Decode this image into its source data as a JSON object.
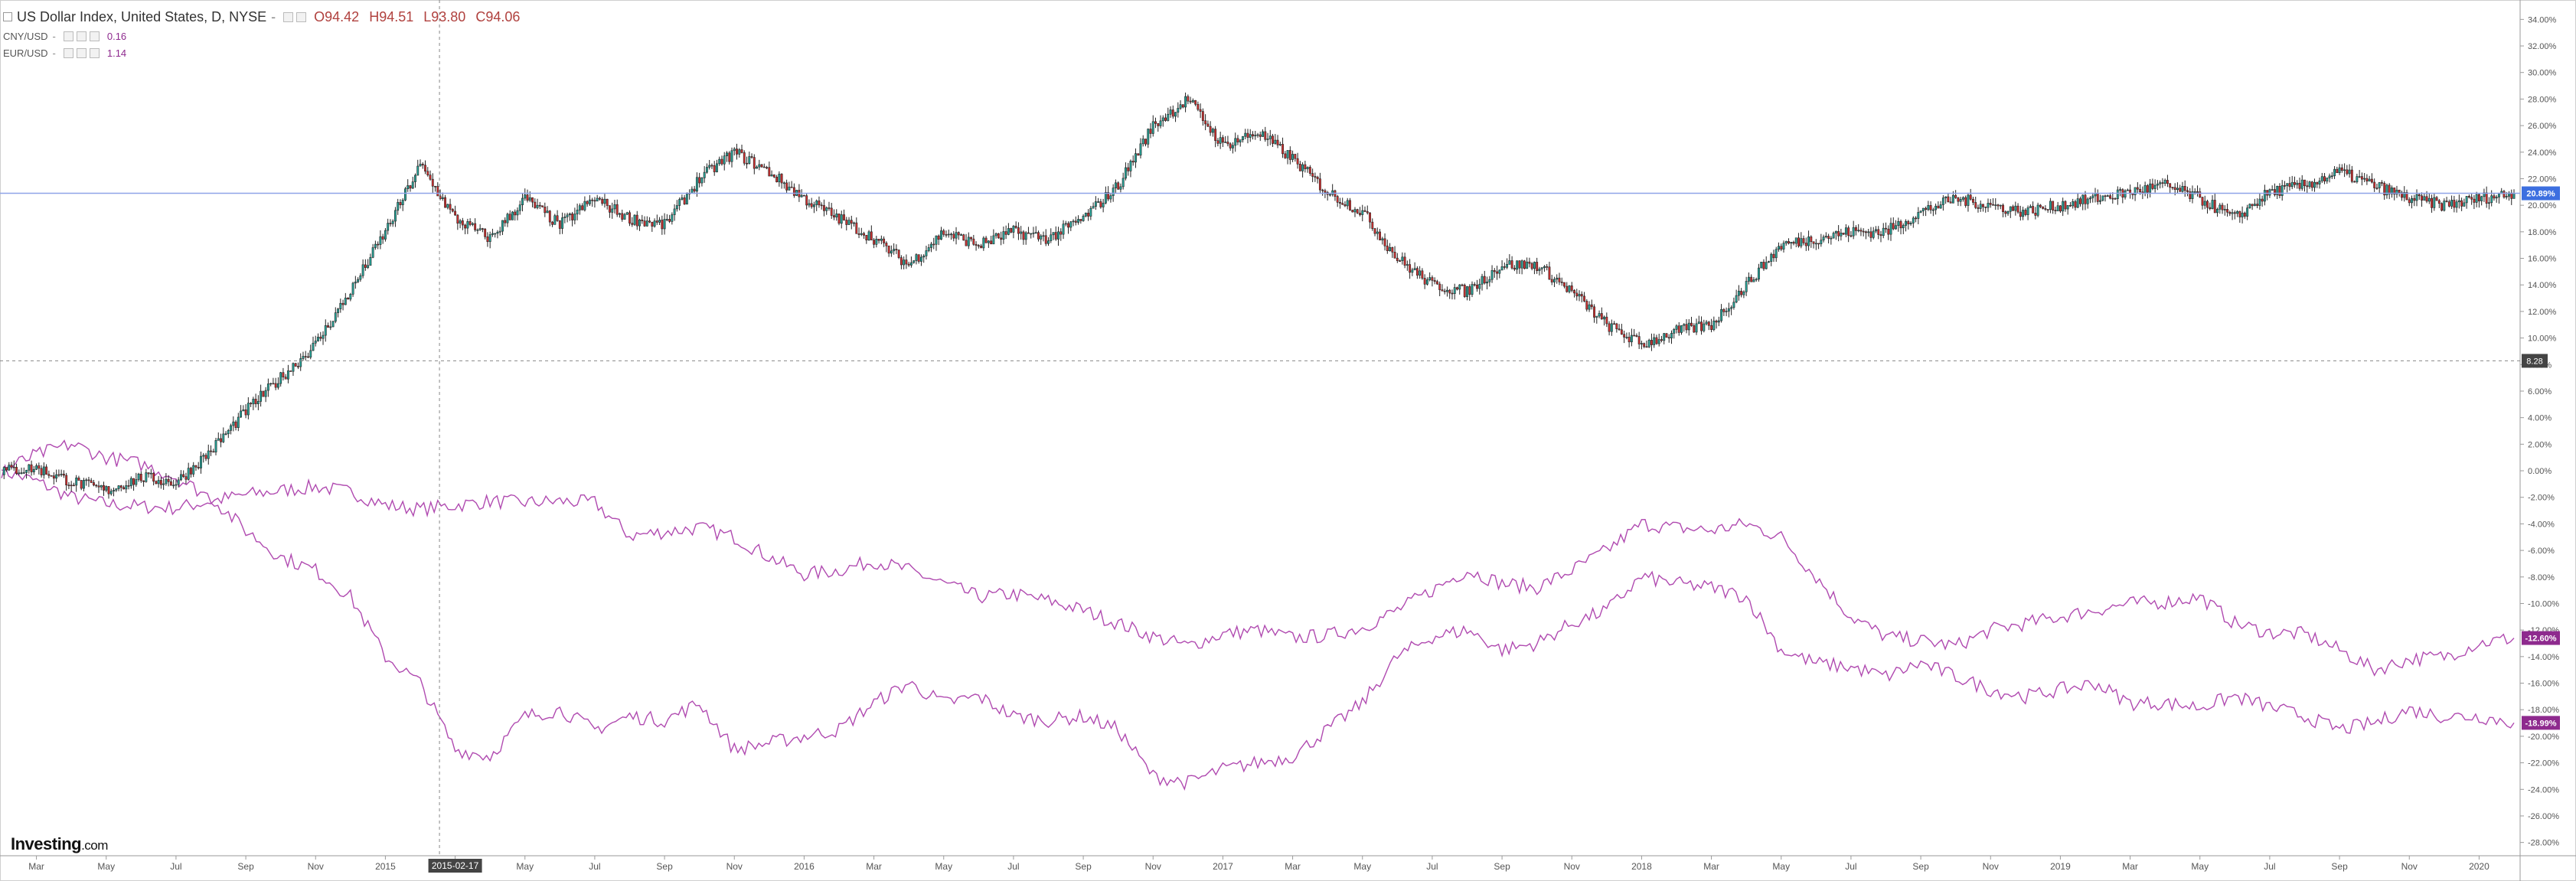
{
  "legend": {
    "main_title": "US Dollar Index, United States, D, NYSE",
    "main_open": "O94.42",
    "main_high": "H94.51",
    "main_low": "L93.80",
    "main_close": "C94.06",
    "cny_label": "CNY/USD",
    "cny_value": "0.16",
    "eur_label": "EUR/USD",
    "eur_value": "1.14"
  },
  "logo": {
    "name": "Investing",
    "suffix": ".com"
  },
  "colors": {
    "up": "#26a69a",
    "down": "#d32f2f",
    "wick": "#222222",
    "compare": "#b04ab0",
    "last_price_line": "#8fa3e8",
    "badge_main": "#3d6fe0",
    "badge_compare": "#8e2a8e",
    "badge_cross": "#444444"
  },
  "crosshair": {
    "date_label": "2015-02-17",
    "value_label": "8.28"
  },
  "chart_data": {
    "type": "line",
    "title": "",
    "xlabel": "",
    "ylabel": "",
    "y_axis_unit": "percent change",
    "ylim": [
      -29,
      35
    ],
    "x_range": [
      "2014-02",
      "2020-02"
    ],
    "x_tick_labels": [
      "Mar",
      "May",
      "Jul",
      "Sep",
      "Nov",
      "2015",
      "2015-02-17",
      "May",
      "Jul",
      "Sep",
      "Nov",
      "2016",
      "Mar",
      "May",
      "Jul",
      "Sep",
      "Nov",
      "2017",
      "Mar",
      "May",
      "Jul",
      "Sep",
      "Nov",
      "2018",
      "Mar",
      "May",
      "Jul",
      "Sep",
      "Nov",
      "2019",
      "Mar",
      "May",
      "Jul",
      "Sep",
      "Nov",
      "2020"
    ],
    "y_tick_labels": [
      "34.00%",
      "32.00%",
      "30.00%",
      "28.00%",
      "26.00%",
      "24.00%",
      "22.00%",
      "20.00%",
      "18.00%",
      "16.00%",
      "14.00%",
      "12.00%",
      "10.00%",
      "8.00%",
      "6.00%",
      "4.00%",
      "2.00%",
      "0.00%",
      "-2.00%",
      "-4.00%",
      "-6.00%",
      "-8.00%",
      "-10.00%",
      "-12.00%",
      "-14.00%",
      "-16.00%",
      "-18.00%",
      "-20.00%",
      "-22.00%",
      "-24.00%",
      "-26.00%",
      "-28.00%"
    ],
    "grid": false,
    "last_value_badges": [
      {
        "series": "US Dollar Index",
        "label": "20.89%"
      },
      {
        "series": "CNY/USD",
        "label": "-12.60%"
      },
      {
        "series": "EUR/USD",
        "label": "-18.99%"
      }
    ],
    "series": [
      {
        "name": "US Dollar Index",
        "style": "candlestick",
        "x": [
          "2014-02",
          "2014-03",
          "2014-04",
          "2014-05",
          "2014-06",
          "2014-07",
          "2014-08",
          "2014-09",
          "2014-10",
          "2014-11",
          "2014-12",
          "2015-01",
          "2015-02",
          "2015-03",
          "2015-04",
          "2015-05",
          "2015-06",
          "2015-07",
          "2015-08",
          "2015-09",
          "2015-10",
          "2015-11",
          "2015-12",
          "2016-01",
          "2016-02",
          "2016-03",
          "2016-04",
          "2016-05",
          "2016-06",
          "2016-07",
          "2016-08",
          "2016-09",
          "2016-10",
          "2016-11",
          "2016-12",
          "2017-01",
          "2017-02",
          "2017-03",
          "2017-04",
          "2017-05",
          "2017-06",
          "2017-07",
          "2017-08",
          "2017-09",
          "2017-10",
          "2017-11",
          "2017-12",
          "2018-01",
          "2018-02",
          "2018-03",
          "2018-04",
          "2018-05",
          "2018-06",
          "2018-07",
          "2018-08",
          "2018-09",
          "2018-10",
          "2018-11",
          "2018-12",
          "2019-01",
          "2019-02",
          "2019-03",
          "2019-04",
          "2019-05",
          "2019-06",
          "2019-07",
          "2019-08",
          "2019-09",
          "2019-10",
          "2019-11",
          "2019-12",
          "2020-01",
          "2020-02"
        ],
        "values": [
          0.0,
          0.2,
          -0.8,
          -1.5,
          -0.5,
          -0.9,
          1.5,
          4.5,
          7.0,
          9.5,
          13.5,
          18.0,
          23.0,
          19.0,
          17.5,
          20.5,
          18.5,
          20.5,
          19.0,
          18.5,
          22.0,
          24.0,
          22.5,
          20.5,
          19.0,
          17.5,
          15.5,
          18.0,
          17.0,
          18.0,
          17.5,
          19.0,
          21.5,
          26.0,
          28.0,
          24.5,
          25.5,
          23.5,
          21.0,
          19.5,
          16.0,
          14.0,
          13.5,
          15.5,
          15.5,
          13.5,
          11.0,
          9.5,
          10.5,
          11.0,
          14.0,
          17.0,
          17.5,
          18.0,
          18.0,
          19.5,
          20.5,
          20.0,
          19.5,
          20.0,
          20.5,
          21.0,
          21.5,
          20.5,
          19.0,
          21.0,
          21.5,
          22.5,
          21.5,
          20.5,
          20.0,
          20.5,
          20.9
        ]
      },
      {
        "name": "CNY/USD",
        "style": "line",
        "x": [
          "2014-02",
          "2014-03",
          "2014-04",
          "2014-05",
          "2014-06",
          "2014-07",
          "2014-08",
          "2014-09",
          "2014-10",
          "2014-11",
          "2014-12",
          "2015-01",
          "2015-02",
          "2015-03",
          "2015-04",
          "2015-05",
          "2015-06",
          "2015-07",
          "2015-08",
          "2015-09",
          "2015-10",
          "2015-11",
          "2015-12",
          "2016-01",
          "2016-02",
          "2016-03",
          "2016-04",
          "2016-05",
          "2016-06",
          "2016-07",
          "2016-08",
          "2016-09",
          "2016-10",
          "2016-11",
          "2016-12",
          "2017-01",
          "2017-02",
          "2017-03",
          "2017-04",
          "2017-05",
          "2017-06",
          "2017-07",
          "2017-08",
          "2017-09",
          "2017-10",
          "2017-11",
          "2017-12",
          "2018-01",
          "2018-02",
          "2018-03",
          "2018-04",
          "2018-05",
          "2018-06",
          "2018-07",
          "2018-08",
          "2018-09",
          "2018-10",
          "2018-11",
          "2018-12",
          "2019-01",
          "2019-02",
          "2019-03",
          "2019-04",
          "2019-05",
          "2019-06",
          "2019-07",
          "2019-08",
          "2019-09",
          "2019-10",
          "2019-11",
          "2019-12",
          "2020-01",
          "2020-02"
        ],
        "values": [
          0.0,
          -0.8,
          -2.0,
          -2.5,
          -2.7,
          -2.8,
          -2.3,
          -1.8,
          -1.5,
          -1.2,
          -1.6,
          -2.6,
          -2.9,
          -2.6,
          -2.3,
          -2.4,
          -2.3,
          -2.4,
          -4.9,
          -4.6,
          -4.3,
          -5.0,
          -6.5,
          -7.8,
          -7.5,
          -6.8,
          -7.5,
          -8.5,
          -9.5,
          -9.3,
          -9.8,
          -10.5,
          -11.5,
          -12.5,
          -13.2,
          -12.3,
          -12.0,
          -12.6,
          -12.4,
          -11.8,
          -10.5,
          -9.0,
          -7.5,
          -8.5,
          -8.8,
          -7.5,
          -6.0,
          -4.0,
          -4.3,
          -4.5,
          -4.0,
          -5.0,
          -8.0,
          -11.0,
          -12.5,
          -12.8,
          -13.2,
          -12.0,
          -11.5,
          -11.0,
          -10.5,
          -10.0,
          -9.9,
          -9.5,
          -11.5,
          -12.2,
          -12.3,
          -13.5,
          -15.0,
          -14.2,
          -14.0,
          -13.0,
          -12.6
        ]
      },
      {
        "name": "EUR/USD",
        "style": "line",
        "x": [
          "2014-02",
          "2014-03",
          "2014-04",
          "2014-05",
          "2014-06",
          "2014-07",
          "2014-08",
          "2014-09",
          "2014-10",
          "2014-11",
          "2014-12",
          "2015-01",
          "2015-02",
          "2015-03",
          "2015-04",
          "2015-05",
          "2015-06",
          "2015-07",
          "2015-08",
          "2015-09",
          "2015-10",
          "2015-11",
          "2015-12",
          "2016-01",
          "2016-02",
          "2016-03",
          "2016-04",
          "2016-05",
          "2016-06",
          "2016-07",
          "2016-08",
          "2016-09",
          "2016-10",
          "2016-11",
          "2016-12",
          "2017-01",
          "2017-02",
          "2017-03",
          "2017-04",
          "2017-05",
          "2017-06",
          "2017-07",
          "2017-08",
          "2017-09",
          "2017-10",
          "2017-11",
          "2017-12",
          "2018-01",
          "2018-02",
          "2018-03",
          "2018-04",
          "2018-05",
          "2018-06",
          "2018-07",
          "2018-08",
          "2018-09",
          "2018-10",
          "2018-11",
          "2018-12",
          "2019-01",
          "2019-02",
          "2019-03",
          "2019-04",
          "2019-05",
          "2019-06",
          "2019-07",
          "2019-08",
          "2019-09",
          "2019-10",
          "2019-11",
          "2019-12",
          "2020-01",
          "2020-02"
        ],
        "values": [
          0.0,
          1.2,
          2.0,
          1.0,
          0.5,
          -0.5,
          -2.0,
          -4.5,
          -6.5,
          -7.5,
          -9.5,
          -14.0,
          -16.0,
          -21.0,
          -21.5,
          -18.5,
          -18.0,
          -19.5,
          -18.5,
          -18.8,
          -17.5,
          -21.0,
          -20.5,
          -20.0,
          -19.5,
          -17.5,
          -16.0,
          -17.5,
          -17.0,
          -18.5,
          -18.8,
          -18.5,
          -19.5,
          -23.0,
          -23.5,
          -22.5,
          -22.0,
          -21.5,
          -19.5,
          -17.5,
          -14.0,
          -12.5,
          -12.0,
          -13.5,
          -13.0,
          -11.5,
          -10.5,
          -8.0,
          -8.5,
          -8.8,
          -9.5,
          -13.5,
          -14.5,
          -14.8,
          -15.5,
          -14.5,
          -15.5,
          -16.5,
          -17.0,
          -16.5,
          -16.0,
          -17.5,
          -17.5,
          -17.8,
          -17.0,
          -17.8,
          -18.5,
          -19.5,
          -19.0,
          -18.0,
          -18.5,
          -18.5,
          -18.99
        ]
      }
    ]
  }
}
